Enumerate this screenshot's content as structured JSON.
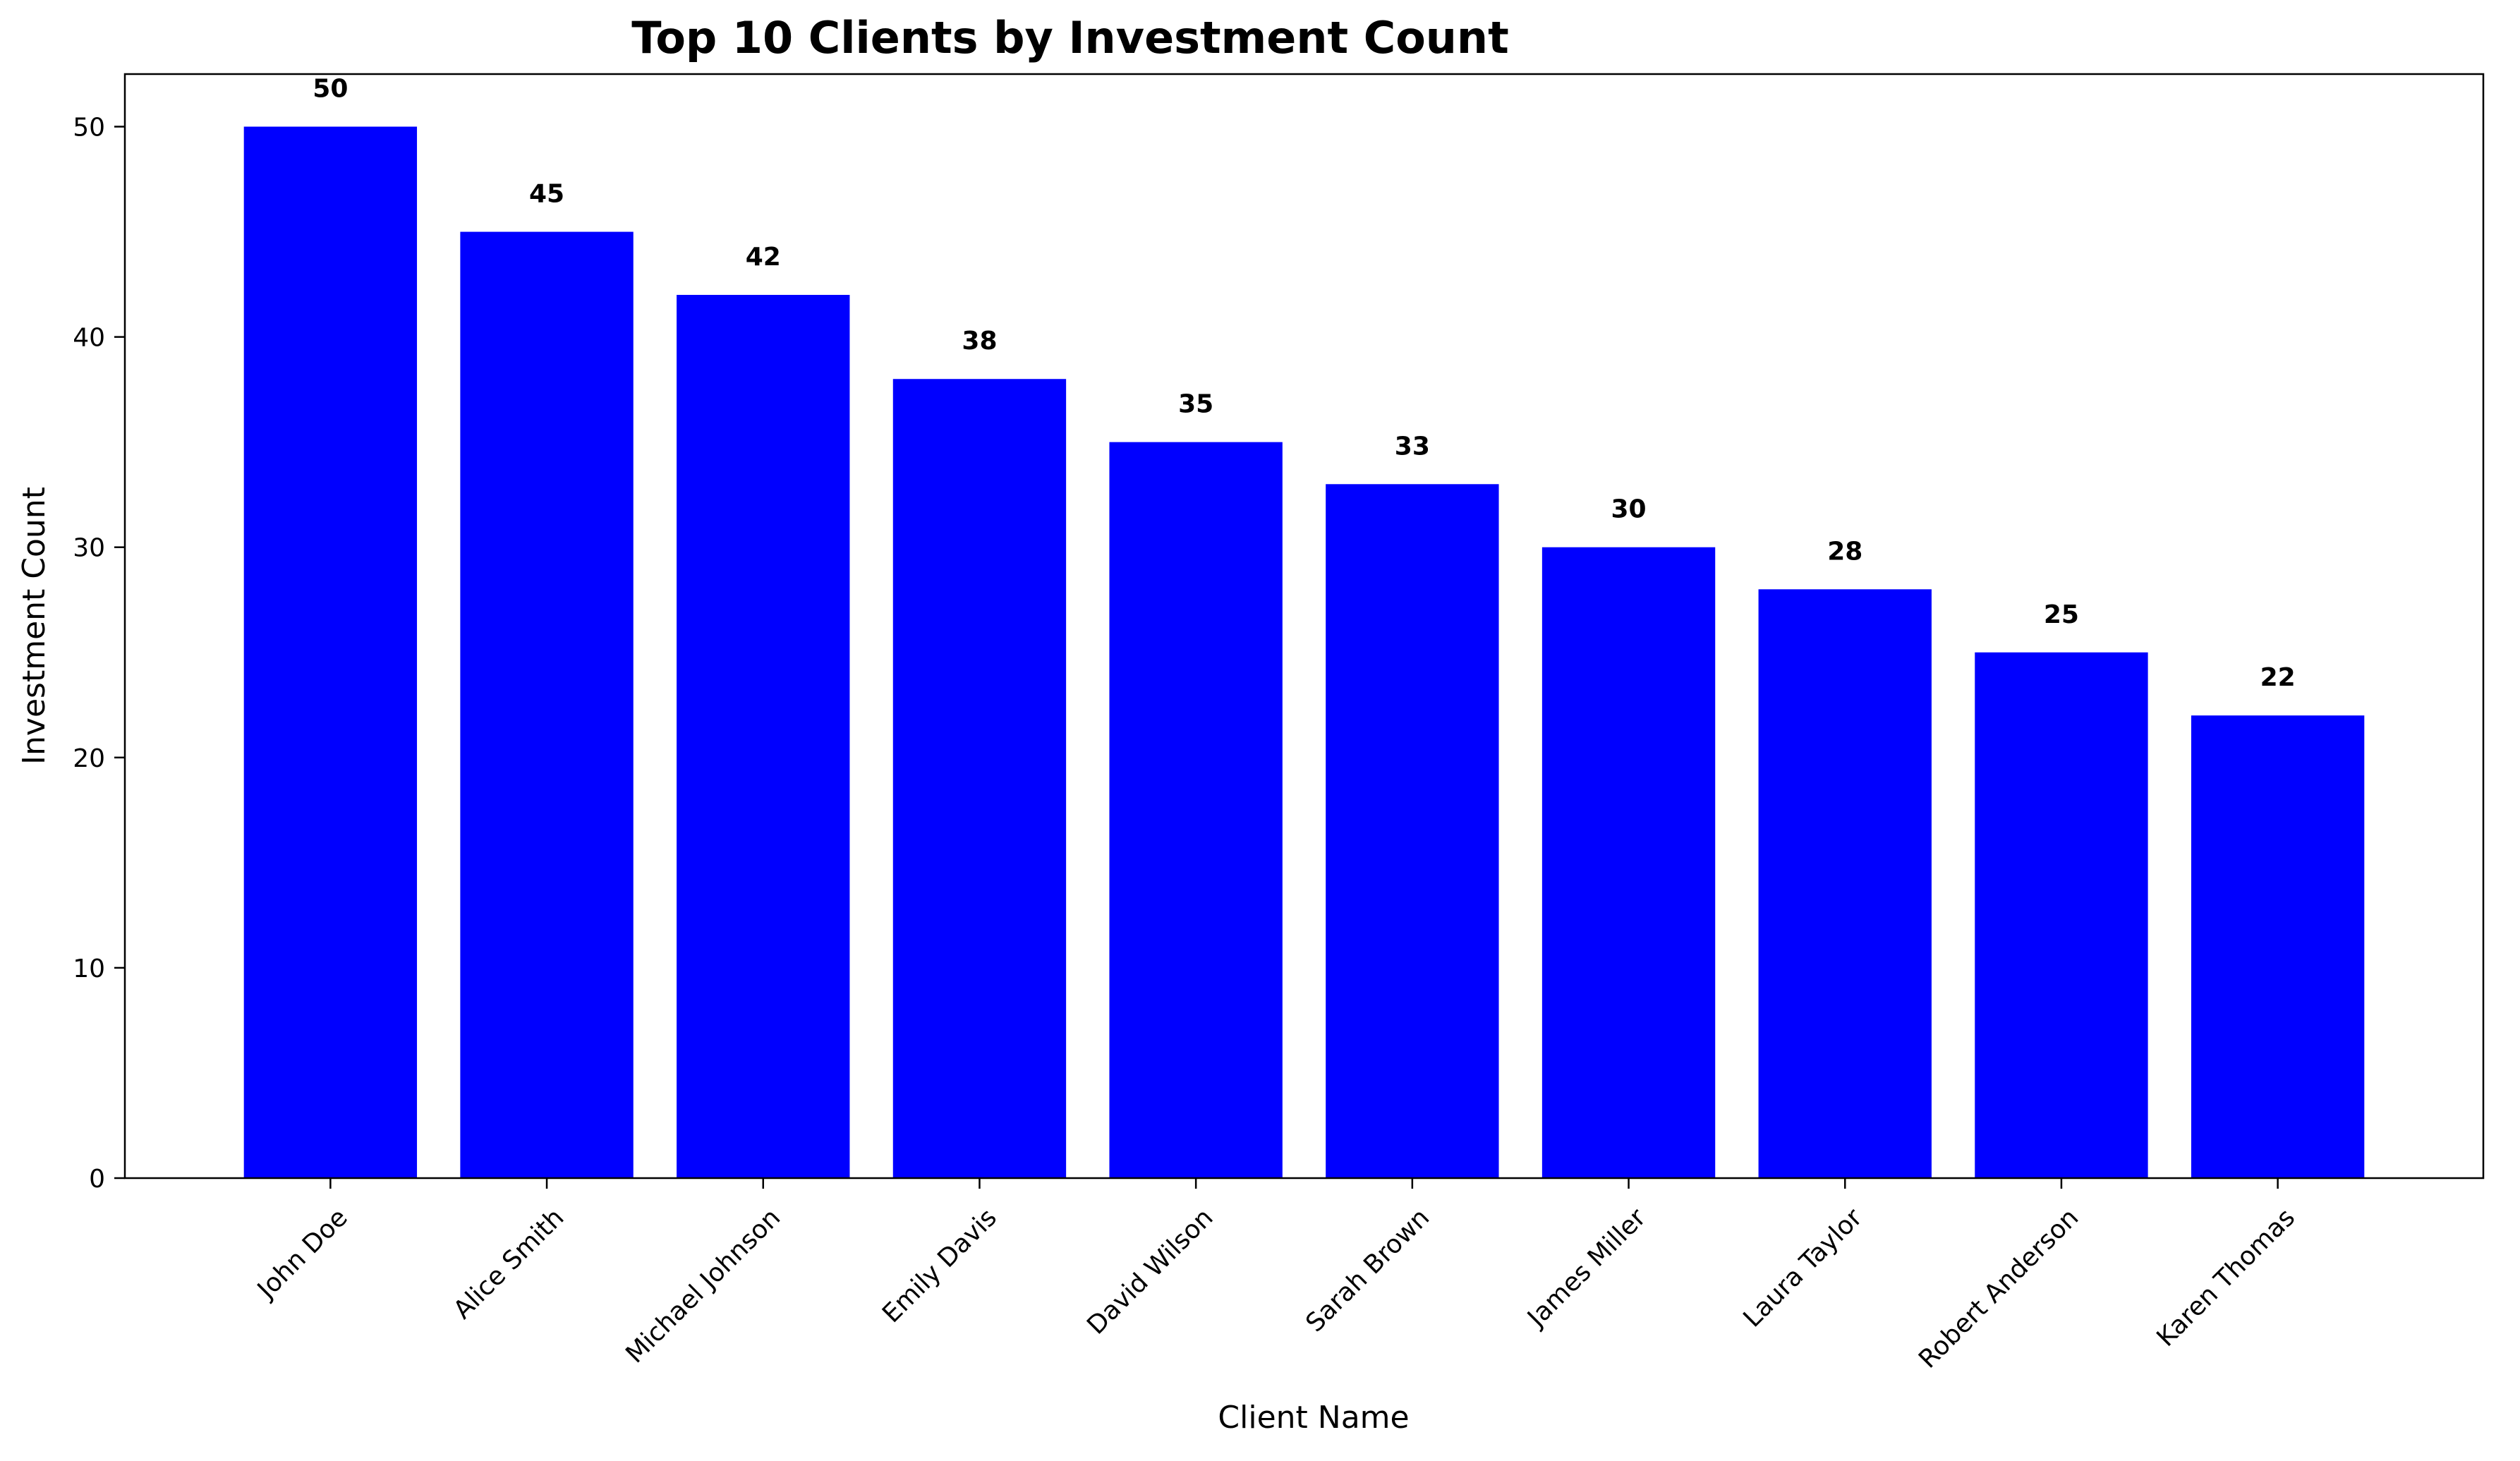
{
  "chart_data": {
    "type": "bar",
    "title": "Top 10 Clients by Investment Count",
    "xlabel": "Client Name",
    "ylabel": "Investment Count",
    "categories": [
      "John Doe",
      "Alice Smith",
      "Michael Johnson",
      "Emily Davis",
      "David Wilson",
      "Sarah Brown",
      "James Miller",
      "Laura Taylor",
      "Robert Anderson",
      "Karen Thomas"
    ],
    "values": [
      50,
      45,
      42,
      38,
      35,
      33,
      30,
      28,
      25,
      22
    ],
    "data_labels": [
      "50",
      "45",
      "42",
      "38",
      "35",
      "33",
      "30",
      "28",
      "25",
      "22"
    ],
    "yticks": [
      0,
      10,
      20,
      30,
      40,
      50
    ],
    "ylim": [
      0,
      52.5
    ],
    "grid": false,
    "legend": "none",
    "bar_color": "#0000ff",
    "xtick_rotation": "45deg"
  }
}
